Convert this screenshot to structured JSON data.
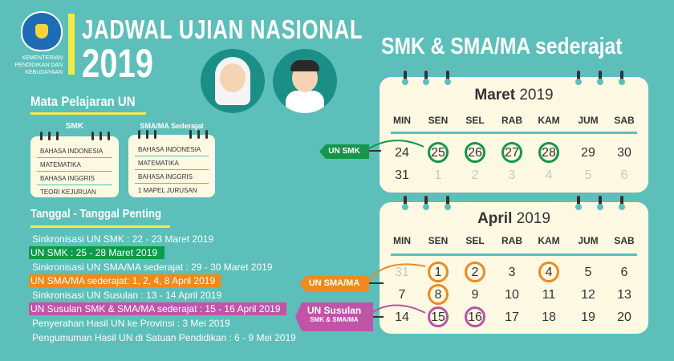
{
  "header": {
    "ministry": [
      "KEMENTERIAN",
      "PENDIDIKAN DAN",
      "KEBUDAYAAN"
    ],
    "title": "JADWAL UJIAN NASIONAL",
    "year": "2019",
    "logo": "tut-wuri-handayani-logo"
  },
  "subjects": {
    "heading": "Mata Pelajaran UN",
    "smk": {
      "label": "SMK",
      "items": [
        "BAHASA INDONESIA",
        "MATEMATIKA",
        "BAHASA INGGRIS",
        "TEORI KEJURUAN"
      ]
    },
    "sma": {
      "label": "SMA/MA Sederajat",
      "items": [
        "BAHASA INDONESIA",
        "MATEMATIKA",
        "BAHASA INGGRIS",
        "1 MAPEL JURUSAN"
      ]
    }
  },
  "dates": {
    "heading": "Tanggal - Tanggal Penting",
    "items": [
      "Sinkronisasi UN SMK : 22 - 23 Maret 2019",
      "UN SMK : 25 - 28 Maret 2019",
      "Sinkronisasi UN SMA/MA sederajat : 29 - 30 Maret 2019",
      "UN SMA/MA sederajat: 1, 2, 4, 8 April 2019",
      "Sinkronisasi UN Susulan : 13 - 14 April 2019",
      "UN Susulan SMK & SMA/MA sederajat : 15 - 16 April 2019",
      "Penyerahan Hasil UN ke Provinsi : 3 Mei 2019",
      "Pengumuman Hasil UN di Satuan Pendidikan : 6 - 9 Mei 2019"
    ]
  },
  "right_title": "SMK & SMA/MA sederajat",
  "weekdays": [
    "MIN",
    "SEN",
    "SEL",
    "RAB",
    "KAM",
    "JUM",
    "SAB"
  ],
  "march": {
    "month": "Maret",
    "year": "2019",
    "rows": [
      [
        "24",
        "25",
        "26",
        "27",
        "28",
        "29",
        "30"
      ],
      [
        "31",
        "1",
        "2",
        "3",
        "4",
        "5",
        "6"
      ]
    ]
  },
  "april": {
    "month": "April",
    "year": "2019",
    "rows": [
      [
        "31",
        "1",
        "2",
        "3",
        "4",
        "5",
        "6"
      ],
      [
        "7",
        "8",
        "9",
        "10",
        "11",
        "12",
        "13"
      ],
      [
        "14",
        "15",
        "16",
        "17",
        "18",
        "19",
        "20"
      ]
    ]
  },
  "tags": {
    "smk": "UN SMK",
    "sma": "UN SMA/MA",
    "susulan": "UN Susulan",
    "susulan_sub": "SMK & SMA/MA"
  },
  "colors": {
    "background": "#5dbfba",
    "green": "#15964a",
    "orange": "#ef8a1e",
    "purple": "#b954a6",
    "yellow": "#f1ec4a",
    "cream": "#fdf9e3"
  }
}
